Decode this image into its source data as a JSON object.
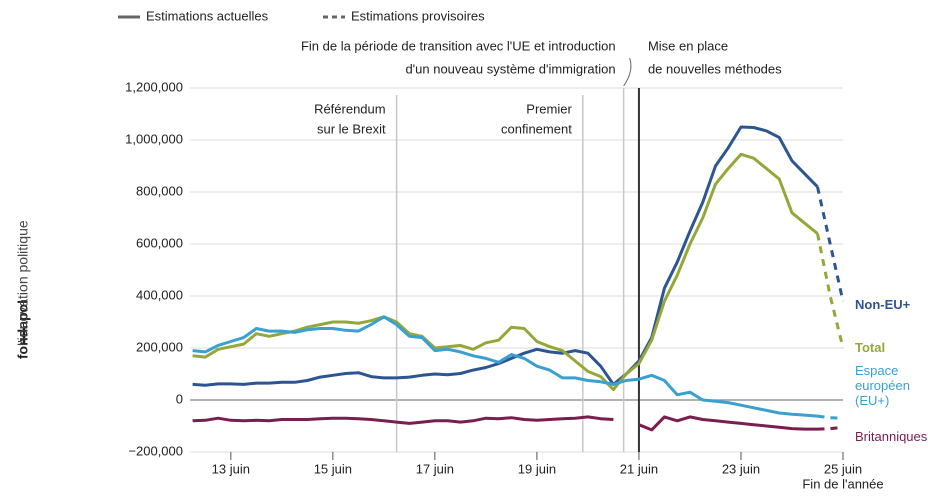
{
  "brand": {
    "name": "fondapol",
    "tagline": "l'innovation politique"
  },
  "chart_data": {
    "type": "line",
    "legend": [
      {
        "label": "Estimations actuelles",
        "dash": false
      },
      {
        "label": "Estimations provisoires",
        "dash": true
      }
    ],
    "x": [
      2012.25,
      2012.5,
      2012.75,
      2013,
      2013.25,
      2013.5,
      2013.75,
      2014,
      2014.25,
      2014.5,
      2014.75,
      2015,
      2015.25,
      2015.5,
      2015.75,
      2016,
      2016.25,
      2016.5,
      2016.75,
      2017,
      2017.25,
      2017.5,
      2017.75,
      2018,
      2018.25,
      2018.5,
      2018.75,
      2019,
      2019.25,
      2019.5,
      2019.75,
      2020,
      2020.25,
      2020.5,
      2020.75,
      2021,
      2021.25,
      2021.5,
      2021.75,
      2022,
      2022.25,
      2022.5,
      2022.75,
      2023,
      2023.25,
      2023.5,
      2023.75,
      2024,
      2024.25,
      2024.5
    ],
    "provisional_x": [
      2024.5,
      2024.75,
      2025
    ],
    "series": [
      {
        "name": "Non-EU+",
        "color": "#2d5592",
        "values": [
          60000,
          57000,
          62000,
          62000,
          60000,
          65000,
          65000,
          68000,
          68000,
          75000,
          88000,
          95000,
          102000,
          105000,
          90000,
          85000,
          85000,
          88000,
          95000,
          100000,
          97000,
          102000,
          115000,
          125000,
          140000,
          160000,
          180000,
          195000,
          185000,
          180000,
          190000,
          180000,
          130000,
          60000,
          100000,
          150000,
          240000,
          430000,
          530000,
          650000,
          760000,
          900000,
          970000,
          1050000,
          1048000,
          1035000,
          1010000,
          920000,
          870000,
          820000
        ],
        "provisional_values": [
          820000,
          600000,
          380000
        ]
      },
      {
        "name": "Total",
        "color": "#94a83a",
        "values": [
          170000,
          165000,
          195000,
          205000,
          215000,
          255000,
          245000,
          255000,
          265000,
          280000,
          290000,
          300000,
          300000,
          295000,
          305000,
          320000,
          300000,
          255000,
          245000,
          200000,
          205000,
          210000,
          195000,
          220000,
          230000,
          280000,
          275000,
          225000,
          205000,
          190000,
          150000,
          110000,
          90000,
          40000,
          100000,
          140000,
          230000,
          380000,
          480000,
          600000,
          700000,
          830000,
          890000,
          945000,
          930000,
          890000,
          850000,
          720000,
          680000,
          640000
        ],
        "provisional_values": [
          640000,
          400000,
          200000
        ]
      },
      {
        "name": "Espace européen (EU+)",
        "color": "#3aa0d0",
        "values": [
          190000,
          185000,
          210000,
          225000,
          240000,
          275000,
          265000,
          265000,
          260000,
          270000,
          275000,
          275000,
          268000,
          265000,
          290000,
          320000,
          290000,
          245000,
          240000,
          190000,
          195000,
          185000,
          170000,
          160000,
          145000,
          175000,
          160000,
          130000,
          115000,
          85000,
          85000,
          75000,
          70000,
          60000,
          75000,
          80000,
          95000,
          75000,
          20000,
          30000,
          0,
          -5000,
          -10000,
          -20000,
          -30000,
          -40000,
          -50000,
          -55000,
          -58000,
          -62000
        ],
        "provisional_values": [
          -62000,
          -68000,
          -70000
        ]
      },
      {
        "name": "Britanniques",
        "color": "#7a1d4f",
        "values": [
          -80000,
          -78000,
          -70000,
          -78000,
          -80000,
          -78000,
          -80000,
          -75000,
          -75000,
          -75000,
          -72000,
          -70000,
          -70000,
          -72000,
          -75000,
          -80000,
          -85000,
          -90000,
          -85000,
          -80000,
          -80000,
          -85000,
          -80000,
          -70000,
          -72000,
          -68000,
          -75000,
          -78000,
          -75000,
          -72000,
          -70000,
          -65000,
          -72000,
          -75000,
          null,
          -95000,
          -115000,
          -65000,
          -80000,
          -65000,
          -75000,
          -80000,
          -85000,
          -90000,
          -95000,
          -100000,
          -105000,
          -110000,
          -112000,
          -112000
        ],
        "provisional_values": [
          -112000,
          -110000,
          -105000
        ]
      }
    ],
    "xlim": [
      2012.2,
      2025
    ],
    "xticks": [
      {
        "value": 2013,
        "label": "13 juin"
      },
      {
        "value": 2015,
        "label": "15 juin"
      },
      {
        "value": 2017,
        "label": "17 juin"
      },
      {
        "value": 2019,
        "label": "19 juin"
      },
      {
        "value": 2021,
        "label": "21 juin"
      },
      {
        "value": 2023,
        "label": "23 juin"
      },
      {
        "value": 2025,
        "label": "25 juin"
      }
    ],
    "x_end_note": "Fin de l'année",
    "ylim": [
      -200000,
      1200000
    ],
    "yticks": [
      {
        "value": -200000,
        "label": "−200,000"
      },
      0,
      {
        "value": 200000,
        "label": "200,000"
      },
      {
        "value": 400000,
        "label": "400,000"
      },
      {
        "value": 600000,
        "label": "600,000"
      },
      {
        "value": 800000,
        "label": "800,000"
      },
      {
        "value": 1000000,
        "label": "1,000,000"
      },
      {
        "value": 1200000,
        "label": "1,200,000"
      }
    ],
    "grid": true,
    "annotations": [
      {
        "x": 2016.25,
        "lines": [
          "Référendum",
          "sur le Brexit"
        ]
      },
      {
        "x": 2019.9,
        "lines": [
          "Premier",
          "confinement"
        ]
      },
      {
        "x": 2020.7,
        "lines": [
          "Fin de la période de transition avec l'UE et introduction",
          "d'un nouveau système d'immigration"
        ]
      },
      {
        "x": 2021,
        "lines": [
          "Mise en place",
          "de nouvelles méthodes"
        ]
      }
    ]
  }
}
